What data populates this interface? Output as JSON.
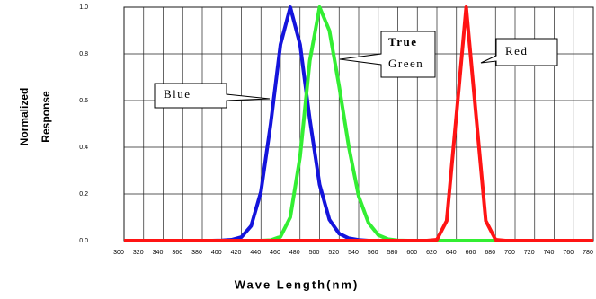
{
  "chart_data": {
    "type": "line",
    "title": null,
    "xlabel": "Wave Length(nm)",
    "ylabel": [
      "Normalized",
      "Response"
    ],
    "x": [
      300,
      310,
      320,
      330,
      340,
      350,
      360,
      370,
      380,
      390,
      400,
      410,
      420,
      430,
      440,
      450,
      460,
      470,
      480,
      490,
      500,
      510,
      520,
      530,
      540,
      550,
      560,
      570,
      580,
      590,
      600,
      610,
      620,
      630,
      640,
      650,
      660,
      670,
      680,
      690,
      700,
      710,
      720,
      730,
      740,
      750,
      760,
      770,
      780
    ],
    "series": [
      {
        "name": "Blue",
        "color": "#1414dc",
        "values": [
          0,
          0,
          0,
          0,
          0,
          0,
          0,
          0,
          0,
          0,
          0.001,
          0.004,
          0.015,
          0.063,
          0.21,
          0.5,
          0.84,
          1,
          0.84,
          0.52,
          0.24,
          0.09,
          0.03,
          0.01,
          0.003,
          0,
          0,
          0,
          0,
          0,
          0,
          0,
          0,
          0,
          0,
          0,
          0,
          0,
          0,
          0,
          0,
          0,
          0,
          0,
          0,
          0,
          0,
          0,
          0
        ]
      },
      {
        "name": "Green",
        "color": "#33ee33",
        "values": [
          0,
          0,
          0,
          0,
          0,
          0,
          0,
          0,
          0,
          0,
          0,
          0,
          0,
          0,
          0,
          0.002,
          0.017,
          0.1,
          0.36,
          0.77,
          1,
          0.9,
          0.66,
          0.4,
          0.19,
          0.076,
          0.024,
          0.006,
          0.001,
          0,
          0,
          0,
          0,
          0,
          0,
          0,
          0,
          0,
          0,
          0,
          0,
          0,
          0,
          0,
          0,
          0,
          0,
          0,
          0
        ]
      },
      {
        "name": "Red",
        "color": "#ff1414",
        "values": [
          0,
          0,
          0,
          0,
          0,
          0,
          0,
          0,
          0,
          0,
          0,
          0,
          0,
          0,
          0,
          0,
          0,
          0,
          0,
          0,
          0,
          0,
          0,
          0,
          0,
          0,
          0,
          0,
          0,
          0,
          0,
          0,
          0.004,
          0.085,
          0.54,
          1,
          0.54,
          0.085,
          0.004,
          0,
          0,
          0,
          0,
          0,
          0,
          0,
          0,
          0,
          0
        ]
      }
    ],
    "annotations": {
      "blue": "Blue",
      "true": "True",
      "green": "Green",
      "red": "Red"
    },
    "xlim": [
      300,
      780
    ],
    "ylim": [
      0,
      1
    ],
    "xticks": [
      300,
      320,
      340,
      360,
      380,
      400,
      420,
      440,
      460,
      480,
      500,
      520,
      540,
      560,
      580,
      600,
      620,
      640,
      660,
      680,
      700,
      720,
      740,
      760,
      780
    ],
    "yticks": [
      {
        "value": 0,
        "label": "0.0"
      },
      0.2,
      0.4,
      0.6,
      0.8,
      {
        "value": 1,
        "label": "1.0"
      }
    ],
    "grid": true
  }
}
